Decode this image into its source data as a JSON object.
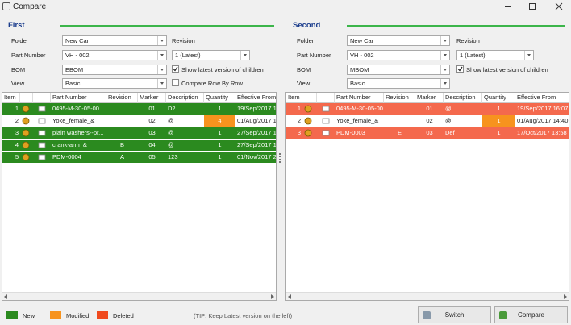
{
  "window": {
    "title": "Compare"
  },
  "panels": [
    {
      "heading": "First",
      "fields": [
        {
          "label": "Folder",
          "value": "New Car"
        },
        {
          "label": "Part Number",
          "value": "VH - 002"
        },
        {
          "label": "BOM",
          "value": "EBOM"
        },
        {
          "label": "View",
          "value": "Basic"
        }
      ],
      "revision": {
        "label": "Revision",
        "value": "1 (Latest)"
      },
      "checkboxes": [
        {
          "label": "Show latest version of children",
          "checked": true
        },
        {
          "label": "Compare Row By Row",
          "checked": false
        }
      ],
      "table": {
        "headers": [
          "Item",
          null,
          null,
          "Part Number",
          "Revision",
          "Marker",
          "Description",
          "Quantity",
          "Effective From"
        ],
        "rows": [
          {
            "color": "#2b8a1f",
            "cells": [
              "1",
              "0495-M-30-05-00",
              null,
              "01",
              "D2",
              "1",
              "19/Sep/2017 1"
            ]
          },
          {
            "color": "#ffffff",
            "qty_color": "#f7931e",
            "cells": [
              "2",
              "Yoke_female_&",
              null,
              "02",
              "@",
              "4",
              "01/Aug/2017 14"
            ]
          },
          {
            "color": "#2b8a1f",
            "cells": [
              "3",
              "plain washers--pr...",
              null,
              "03",
              "@",
              "1",
              "27/Sep/2017 1"
            ]
          },
          {
            "color": "#2b8a1f",
            "cells": [
              "4",
              "crank-arm_&",
              "B",
              "04",
              "@",
              "1",
              "27/Sep/2017 1"
            ]
          },
          {
            "color": "#2b8a1f",
            "cells": [
              "5",
              "PDM-0004",
              "A",
              "05",
              "123",
              "1",
              "01/Nov/2017 2"
            ]
          }
        ]
      }
    },
    {
      "heading": "Second",
      "fields": [
        {
          "label": "Folder",
          "value": "New Car"
        },
        {
          "label": "Part Number",
          "value": "VH - 002"
        },
        {
          "label": "BOM",
          "value": "MBOM"
        },
        {
          "label": "View",
          "value": "Basic"
        }
      ],
      "revision": {
        "label": "Revision",
        "value": "1 (Latest)"
      },
      "checkboxes": [
        {
          "label": "Show latest version of children",
          "checked": true
        }
      ],
      "table": {
        "headers": [
          "Item",
          null,
          null,
          "Part Number",
          "Revision",
          "Marker",
          "Description",
          "Quantity",
          "Effective From"
        ],
        "rows": [
          {
            "color": "#f4694d",
            "cells": [
              "1",
              "0495-M-30-05-00",
              null,
              "01",
              "@",
              "1",
              "19/Sep/2017 16:07"
            ]
          },
          {
            "color": "#ffffff",
            "qty_color": "#f7931e",
            "cells": [
              "2",
              "Yoke_female_&",
              null,
              "02",
              "@",
              "1",
              "01/Aug/2017 14:40"
            ]
          },
          {
            "color": "#f4694d",
            "cells": [
              "3",
              "PDM-0003",
              "E",
              "03",
              "Def",
              "1",
              "17/Oct/2017 13:58"
            ]
          }
        ]
      }
    }
  ],
  "legend": [
    {
      "label": "New",
      "color": "#2b8a1f"
    },
    {
      "label": "Modified",
      "color": "#f7931e"
    },
    {
      "label": "Deleted",
      "color": "#f04a1e"
    }
  ],
  "tip": "(TIP: Keep Latest version on the left)",
  "buttons": [
    "Switch",
    "Compare"
  ]
}
